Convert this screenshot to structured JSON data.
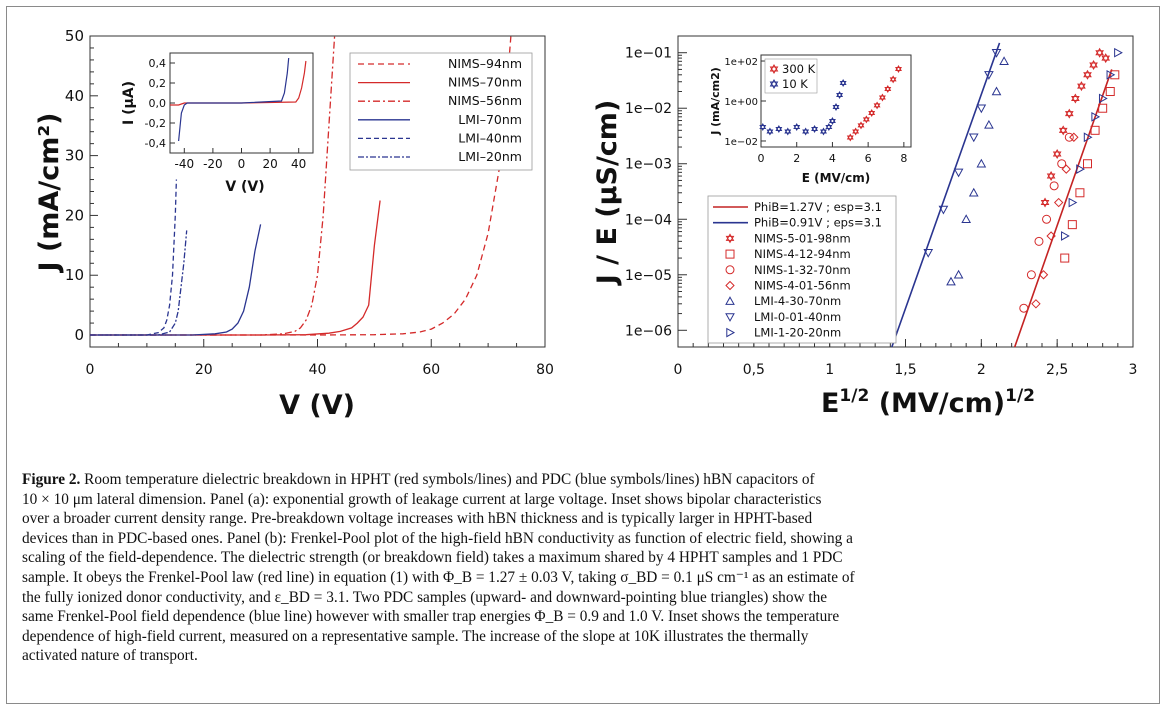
{
  "panel_a": {
    "ylabel": "J (mA/cm²)",
    "xlabel": "V (V)",
    "x_ticks": [
      "0",
      "20",
      "40",
      "60",
      "80"
    ],
    "y_ticks": [
      "0",
      "10",
      "20",
      "30",
      "40",
      "50"
    ],
    "legend": [
      "NIMS–94nm",
      "NIMS–70nm",
      "NIMS–56nm",
      "LMI–70nm",
      "LMI–40nm",
      "LMI–20nm"
    ],
    "inset": {
      "ylabel": "I (μA)",
      "xlabel": "V (V)",
      "x_ticks": [
        "-40",
        "-20",
        "0",
        "20",
        "40"
      ],
      "y_ticks": [
        "0,4",
        "0,2",
        "0,0",
        "-0,2",
        "-0,4"
      ]
    }
  },
  "panel_b": {
    "ylabel": "J / E (μS/cm)",
    "xlabel": "E^1/2 (MV/cm)^1/2",
    "x_ticks": [
      "0",
      "0,5",
      "1",
      "1,5",
      "2",
      "2,5",
      "3"
    ],
    "y_ticks": [
      "1e−06",
      "1e−05",
      "1e−04",
      "1e−03",
      "1e−02",
      "1e−01"
    ],
    "legend": [
      "PhiB=1.27V ; esp=3.1",
      "PhiB=0.91V ; eps=3.1",
      "NIMS-5-01-98nm",
      "NIMS-4-12-94nm",
      "NIMS-1-32-70nm",
      "NIMS-4-01-56nm",
      "LMI-4-30-70nm",
      "LMI-0-01-40nm",
      "LMI-1-20-20nm"
    ],
    "inset": {
      "ylabel": "J (mA/cm2)",
      "xlabel": "E (MV/cm)",
      "x_ticks": [
        "0",
        "2",
        "4",
        "6",
        "8"
      ],
      "y_ticks": [
        "1e+02",
        "1e+00",
        "1e−02"
      ],
      "legend": [
        "300 K",
        "10 K"
      ]
    }
  },
  "caption": {
    "figure_label": "Figure 2.",
    "lines": [
      " Room temperature dielectric breakdown in HPHT (red symbols/lines) and PDC (blue symbols/lines) hBN capacitors of",
      "10 × 10 μm lateral dimension. Panel (a): exponential growth of leakage current at large voltage. Inset shows bipolar characteristics",
      "over a broader current density range. Pre-breakdown voltage increases with hBN thickness and is typically larger in HPHT-based",
      "devices than in PDC-based ones. Panel (b): Frenkel-Pool plot of the high-field hBN conductivity as function of electric field, showing a",
      "scaling of the field-dependence. The dielectric strength (or breakdown field) takes a maximum shared by 4 HPHT samples and 1 PDC",
      "sample. It obeys the Frenkel-Pool law (red line) in equation (1) with Φ_B = 1.27 ± 0.03 V, taking σ_BD = 0.1 μS cm⁻¹ as an estimate of",
      "the fully ionized donor conductivity, and ε_BD = 3.1. Two PDC samples (upward- and downward-pointing blue triangles) show the",
      "same Frenkel-Pool field dependence (blue line) however with smaller trap energies Φ_B = 0.9 and 1.0 V. Inset shows the temperature",
      "dependence of high-field current, measured on a representative sample. The increase of the slope at 10K illustrates the thermally",
      "activated nature of transport."
    ]
  },
  "chart_data": [
    {
      "type": "line",
      "panel": "a",
      "xlabel": "V (V)",
      "ylabel": "J (mA/cm²)",
      "xlim": [
        0,
        80
      ],
      "ylim": [
        -2,
        50
      ],
      "grid": false,
      "legend_position": "top-right",
      "series": [
        {
          "name": "NIMS–94nm",
          "color": "#d42a2a",
          "dash": "6,4",
          "x": [
            0,
            40,
            50,
            55,
            58,
            60,
            62,
            64,
            66,
            68,
            70,
            72,
            73,
            74
          ],
          "y": [
            0,
            0,
            0.05,
            0.2,
            0.5,
            1,
            2,
            3.5,
            6,
            10,
            17,
            28,
            38,
            50
          ]
        },
        {
          "name": "NIMS–70nm",
          "color": "#d42a2a",
          "dash": "",
          "x": [
            0,
            30,
            38,
            42,
            44,
            46,
            47,
            48,
            49,
            50,
            51
          ],
          "y": [
            0,
            0,
            0.05,
            0.3,
            0.6,
            1.2,
            2,
            3,
            5,
            15,
            22.5
          ]
        },
        {
          "name": "NIMS–56nm",
          "color": "#d42a2a",
          "dash": "7,3,2,3",
          "x": [
            0,
            30,
            34,
            36,
            37,
            38,
            39,
            40,
            41,
            42,
            43
          ],
          "y": [
            0,
            0,
            0.2,
            0.6,
            1.2,
            2.5,
            5,
            10,
            20,
            35,
            50
          ]
        },
        {
          "name": "LMI–70nm",
          "color": "#2a3590",
          "dash": "",
          "x": [
            0,
            18,
            22,
            24,
            25,
            26,
            27,
            28,
            29,
            30
          ],
          "y": [
            0,
            0,
            0.2,
            0.5,
            1,
            2,
            4,
            8,
            14,
            18.5
          ]
        },
        {
          "name": "LMI–40nm",
          "color": "#2a3590",
          "dash": "5,3",
          "x": [
            0,
            10,
            12,
            13,
            13.5,
            14,
            14.5,
            15,
            15.2
          ],
          "y": [
            0,
            0,
            0.4,
            1.2,
            2.5,
            5,
            10,
            20,
            26
          ]
        },
        {
          "name": "LMI–20nm",
          "color": "#2a3590",
          "dash": "6,2,2,2",
          "x": [
            0,
            12,
            14,
            15,
            15.5,
            16,
            16.5,
            17
          ],
          "y": [
            0,
            0,
            0.5,
            2,
            4,
            8,
            12,
            17.5
          ]
        }
      ]
    },
    {
      "type": "line",
      "panel": "a-inset",
      "xlabel": "V (V)",
      "ylabel": "I (μA)",
      "xlim": [
        -50,
        50
      ],
      "ylim": [
        -0.5,
        0.5
      ],
      "series": [
        {
          "name": "",
          "color": "#d42a2a",
          "x": [
            -50,
            -44,
            -42,
            -40,
            0,
            38,
            40,
            42,
            44,
            45
          ],
          "y": [
            -0.02,
            -0.02,
            -0.01,
            0,
            0,
            0.01,
            0.05,
            0.15,
            0.3,
            0.42
          ]
        },
        {
          "name": "",
          "color": "#2a3590",
          "x": [
            -44,
            -42,
            -40,
            -38,
            0,
            28,
            30,
            32,
            33
          ],
          "y": [
            -0.38,
            -0.1,
            -0.02,
            0,
            0,
            0.02,
            0.1,
            0.3,
            0.45
          ]
        }
      ]
    },
    {
      "type": "scatter",
      "panel": "b",
      "xlabel": "E^1/2 (MV/cm)^1/2",
      "ylabel": "J / E (μS/cm)",
      "xlim": [
        0,
        3
      ],
      "ylim": [
        5e-07,
        0.2
      ],
      "log_y": true,
      "grid": false,
      "legend_position": "bottom-left",
      "lines": [
        {
          "name": "PhiB=1.27V ; esp=3.1",
          "color": "#c42323",
          "x": [
            2.22,
            2.86
          ],
          "y": [
            5e-07,
            0.05
          ]
        },
        {
          "name": "PhiB=0.91V ; eps=3.1",
          "color": "#2a3590",
          "x": [
            1.41,
            2.12
          ],
          "y": [
            5e-07,
            0.15
          ]
        }
      ],
      "series": [
        {
          "name": "NIMS-5-01-98nm",
          "marker": "star",
          "color": "#d42a2a",
          "x": [
            2.42,
            2.46,
            2.5,
            2.54,
            2.58,
            2.62,
            2.66,
            2.7,
            2.74,
            2.78,
            2.82
          ],
          "y": [
            0.0002,
            0.0006,
            0.0015,
            0.004,
            0.008,
            0.015,
            0.025,
            0.04,
            0.06,
            0.1,
            0.08
          ]
        },
        {
          "name": "NIMS-4-12-94nm",
          "marker": "square",
          "color": "#d42a2a",
          "x": [
            2.55,
            2.6,
            2.65,
            2.7,
            2.75,
            2.8,
            2.85,
            2.88
          ],
          "y": [
            2e-05,
            8e-05,
            0.0003,
            0.001,
            0.004,
            0.01,
            0.02,
            0.04
          ]
        },
        {
          "name": "NIMS-1-32-70nm",
          "marker": "circle",
          "color": "#d42a2a",
          "x": [
            2.28,
            2.33,
            2.38,
            2.43,
            2.48,
            2.53,
            2.58
          ],
          "y": [
            2.5e-06,
            1e-05,
            4e-05,
            0.0001,
            0.0004,
            0.001,
            0.003
          ]
        },
        {
          "name": "NIMS-4-01-56nm",
          "marker": "diamond",
          "color": "#d42a2a",
          "x": [
            2.36,
            2.41,
            2.46,
            2.51,
            2.56,
            2.61
          ],
          "y": [
            3e-06,
            1e-05,
            5e-05,
            0.0002,
            0.0008,
            0.003
          ]
        },
        {
          "name": "LMI-4-30-70nm",
          "marker": "triangle-up",
          "color": "#2a3590",
          "x": [
            1.8,
            1.85,
            1.9,
            1.95,
            2.0,
            2.05,
            2.1,
            2.15
          ],
          "y": [
            7.5e-06,
            1e-05,
            0.0001,
            0.0003,
            0.001,
            0.005,
            0.02,
            0.07
          ]
        },
        {
          "name": "LMI-0-01-40nm",
          "marker": "triangle-down",
          "color": "#2a3590",
          "x": [
            1.65,
            1.75,
            1.85,
            1.95,
            2.0,
            2.05,
            2.1
          ],
          "y": [
            2.5e-05,
            0.00015,
            0.0007,
            0.003,
            0.01,
            0.04,
            0.1
          ]
        },
        {
          "name": "LMI-1-20-20nm",
          "marker": "triangle-right",
          "color": "#2a3590",
          "x": [
            2.55,
            2.6,
            2.65,
            2.7,
            2.75,
            2.8,
            2.85,
            2.9
          ],
          "y": [
            5e-05,
            0.0002,
            0.0008,
            0.003,
            0.007,
            0.015,
            0.04,
            0.1
          ]
        }
      ]
    },
    {
      "type": "scatter",
      "panel": "b-inset",
      "xlabel": "E (MV/cm)",
      "ylabel": "J (mA/cm2)",
      "xlim": [
        0,
        8.4
      ],
      "ylim": [
        0.005,
        200
      ],
      "log_y": true,
      "legend_position": "top-left",
      "series": [
        {
          "name": "300 K",
          "marker": "star",
          "color": "#d42a2a",
          "x": [
            5.0,
            5.3,
            5.6,
            5.9,
            6.2,
            6.5,
            6.8,
            7.1,
            7.4,
            7.7
          ],
          "y": [
            0.015,
            0.03,
            0.06,
            0.12,
            0.25,
            0.6,
            1.5,
            4,
            12,
            40
          ]
        },
        {
          "name": "10 K",
          "marker": "star",
          "color": "#2a3590",
          "x": [
            0.1,
            0.5,
            1.0,
            1.5,
            2.0,
            2.5,
            3.0,
            3.5,
            3.8,
            4.0,
            4.2,
            4.4,
            4.6
          ],
          "y": [
            0.05,
            0.03,
            0.04,
            0.03,
            0.05,
            0.03,
            0.04,
            0.03,
            0.05,
            0.1,
            0.5,
            2,
            8
          ]
        }
      ]
    }
  ]
}
